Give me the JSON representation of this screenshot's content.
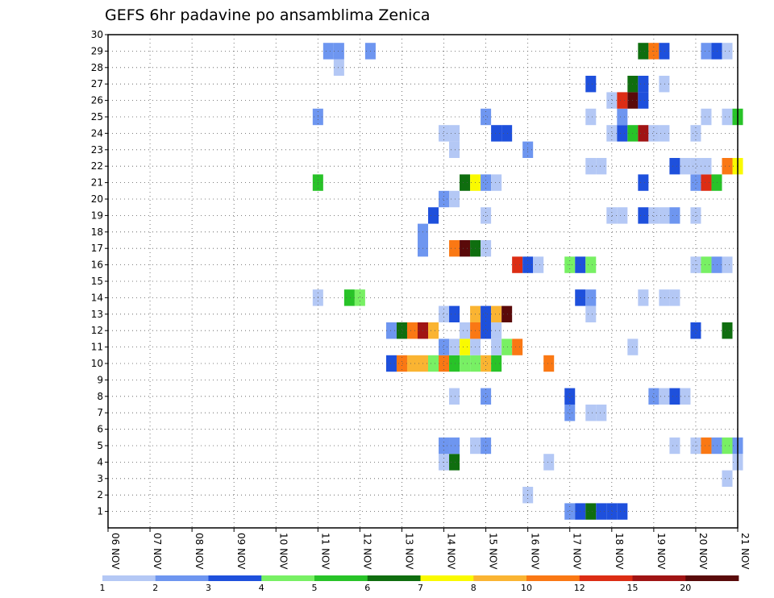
{
  "chart_data": {
    "type": "heatmap",
    "title": "GEFS 6hr padavine po ansamblima Zenica",
    "x_ticks": [
      "06 NOV",
      "07 NOV",
      "08 NOV",
      "09 NOV",
      "10 NOV",
      "11 NOV",
      "12 NOV",
      "13 NOV",
      "14 NOV",
      "15 NOV",
      "16 NOV",
      "17 NOV",
      "18 NOV",
      "19 NOV",
      "20 NOV",
      "21 NOV"
    ],
    "y_ticks": [
      "1",
      "2",
      "3",
      "4",
      "5",
      "6",
      "7",
      "8",
      "9",
      "10",
      "11",
      "12",
      "13",
      "14",
      "15",
      "16",
      "17",
      "18",
      "19",
      "20",
      "21",
      "22",
      "23",
      "24",
      "25",
      "26",
      "27",
      "28",
      "29",
      "30"
    ],
    "xlim": [
      0,
      15
    ],
    "ylim": [
      0,
      30
    ],
    "step_days": 0.25,
    "grid": true,
    "colorbar": {
      "labels": [
        "1",
        "2",
        "3",
        "4",
        "5",
        "6",
        "7",
        "8",
        "10",
        "12",
        "15",
        "20"
      ],
      "colors": [
        "#b4c8f5",
        "#6e96f0",
        "#1e50dc",
        "#78f064",
        "#28c328",
        "#0f6e0f",
        "#fafa00",
        "#fab432",
        "#fa7814",
        "#dc2d14",
        "#a01414",
        "#5a0a0a"
      ]
    },
    "cells": [
      {
        "y": 1,
        "x": [
          [
            11.0,
            2
          ],
          [
            11.25,
            3
          ],
          [
            11.5,
            6
          ],
          [
            11.75,
            3
          ],
          [
            12.0,
            3
          ],
          [
            12.25,
            3
          ]
        ]
      },
      {
        "y": 2,
        "x": [
          [
            10.0,
            1
          ]
        ]
      },
      {
        "y": 3,
        "x": [
          [
            14.75,
            1
          ]
        ]
      },
      {
        "y": 4,
        "x": [
          [
            8.0,
            1
          ],
          [
            8.25,
            6
          ],
          [
            10.5,
            1
          ],
          [
            15.0,
            1
          ]
        ]
      },
      {
        "y": 5,
        "x": [
          [
            8.0,
            2
          ],
          [
            8.25,
            2
          ],
          [
            8.75,
            1
          ],
          [
            9.0,
            2
          ],
          [
            13.5,
            1
          ],
          [
            14.0,
            1
          ],
          [
            14.25,
            9
          ],
          [
            14.5,
            2
          ],
          [
            14.75,
            4
          ],
          [
            15.0,
            2
          ]
        ]
      },
      {
        "y": 7,
        "x": [
          [
            11.0,
            2
          ],
          [
            11.5,
            1
          ],
          [
            11.75,
            1
          ]
        ]
      },
      {
        "y": 8,
        "x": [
          [
            8.25,
            1
          ],
          [
            9.0,
            2
          ],
          [
            11.0,
            3
          ],
          [
            13.0,
            2
          ],
          [
            13.25,
            1
          ],
          [
            13.5,
            3
          ],
          [
            13.75,
            1
          ]
        ]
      },
      {
        "y": 10,
        "x": [
          [
            6.75,
            3
          ],
          [
            7.0,
            9
          ],
          [
            7.25,
            8
          ],
          [
            7.5,
            8
          ],
          [
            7.75,
            4
          ],
          [
            8.0,
            9
          ],
          [
            8.25,
            5
          ],
          [
            8.5,
            4
          ],
          [
            8.75,
            4
          ],
          [
            9.0,
            8
          ],
          [
            9.25,
            5
          ],
          [
            10.5,
            9
          ]
        ]
      },
      {
        "y": 11,
        "x": [
          [
            8.0,
            2
          ],
          [
            8.25,
            1
          ],
          [
            8.5,
            7
          ],
          [
            8.75,
            1
          ],
          [
            9.25,
            1
          ],
          [
            9.5,
            4
          ],
          [
            9.75,
            9
          ],
          [
            12.5,
            1
          ]
        ]
      },
      {
        "y": 12,
        "x": [
          [
            6.75,
            2
          ],
          [
            7.0,
            6
          ],
          [
            7.25,
            9
          ],
          [
            7.5,
            11
          ],
          [
            7.75,
            8
          ],
          [
            8.5,
            1
          ],
          [
            8.75,
            9
          ],
          [
            9.0,
            3
          ],
          [
            9.25,
            1
          ],
          [
            14.0,
            3
          ],
          [
            14.75,
            6
          ]
        ]
      },
      {
        "y": 13,
        "x": [
          [
            8.0,
            1
          ],
          [
            8.25,
            3
          ],
          [
            8.75,
            8
          ],
          [
            9.0,
            3
          ],
          [
            9.25,
            8
          ],
          [
            9.5,
            12
          ],
          [
            11.5,
            1
          ]
        ]
      },
      {
        "y": 14,
        "x": [
          [
            5.0,
            1
          ],
          [
            5.75,
            5
          ],
          [
            6.0,
            4
          ],
          [
            11.25,
            3
          ],
          [
            11.5,
            2
          ],
          [
            12.75,
            1
          ],
          [
            13.25,
            1
          ],
          [
            13.5,
            1
          ]
        ]
      },
      {
        "y": 15,
        "x": []
      },
      {
        "y": 16,
        "x": [
          [
            9.75,
            10
          ],
          [
            10.0,
            3
          ],
          [
            10.25,
            1
          ],
          [
            11.0,
            4
          ],
          [
            11.25,
            3
          ],
          [
            11.5,
            4
          ],
          [
            14.0,
            1
          ],
          [
            14.25,
            4
          ],
          [
            14.5,
            2
          ],
          [
            14.75,
            1
          ]
        ]
      },
      {
        "y": 17,
        "x": [
          [
            7.5,
            2
          ],
          [
            8.25,
            9
          ],
          [
            8.5,
            12
          ],
          [
            8.75,
            6
          ],
          [
            9.0,
            1
          ]
        ]
      },
      {
        "y": 18,
        "x": [
          [
            7.5,
            2
          ]
        ]
      },
      {
        "y": 19,
        "x": [
          [
            7.75,
            3
          ],
          [
            9.0,
            1
          ],
          [
            12.0,
            1
          ],
          [
            12.25,
            1
          ],
          [
            12.75,
            3
          ],
          [
            13.0,
            1
          ],
          [
            13.25,
            1
          ],
          [
            13.5,
            2
          ],
          [
            14.0,
            1
          ]
        ]
      },
      {
        "y": 20,
        "x": [
          [
            8.0,
            2
          ],
          [
            8.25,
            1
          ]
        ]
      },
      {
        "y": 21,
        "x": [
          [
            5.0,
            5
          ],
          [
            8.5,
            6
          ],
          [
            8.75,
            7
          ],
          [
            9.0,
            2
          ],
          [
            9.25,
            1
          ],
          [
            12.75,
            3
          ],
          [
            14.0,
            2
          ],
          [
            14.25,
            10
          ],
          [
            14.5,
            5
          ]
        ]
      },
      {
        "y": 22,
        "x": [
          [
            11.5,
            1
          ],
          [
            11.75,
            1
          ],
          [
            13.5,
            3
          ],
          [
            13.75,
            1
          ],
          [
            14.0,
            1
          ],
          [
            14.25,
            1
          ],
          [
            14.75,
            9
          ],
          [
            15.0,
            7
          ]
        ]
      },
      {
        "y": 23,
        "x": [
          [
            8.25,
            1
          ],
          [
            10.0,
            2
          ]
        ]
      },
      {
        "y": 24,
        "x": [
          [
            8.0,
            1
          ],
          [
            8.25,
            1
          ],
          [
            9.25,
            3
          ],
          [
            9.5,
            3
          ],
          [
            12.0,
            1
          ],
          [
            12.25,
            3
          ],
          [
            12.5,
            5
          ],
          [
            12.75,
            11
          ],
          [
            13.0,
            1
          ],
          [
            13.25,
            1
          ],
          [
            14.0,
            1
          ]
        ]
      },
      {
        "y": 25,
        "x": [
          [
            5.0,
            2
          ],
          [
            9.0,
            2
          ],
          [
            11.5,
            1
          ],
          [
            12.25,
            2
          ],
          [
            14.25,
            1
          ],
          [
            14.75,
            1
          ],
          [
            15.0,
            5
          ]
        ]
      },
      {
        "y": 26,
        "x": [
          [
            12.0,
            1
          ],
          [
            12.25,
            10
          ],
          [
            12.5,
            12
          ],
          [
            12.75,
            3
          ]
        ]
      },
      {
        "y": 27,
        "x": [
          [
            11.5,
            3
          ],
          [
            12.5,
            6
          ],
          [
            12.75,
            3
          ],
          [
            13.25,
            1
          ]
        ]
      },
      {
        "y": 28,
        "x": [
          [
            5.5,
            1
          ]
        ]
      },
      {
        "y": 29,
        "x": [
          [
            5.25,
            2
          ],
          [
            5.5,
            2
          ],
          [
            6.25,
            2
          ],
          [
            12.75,
            6
          ],
          [
            13.0,
            9
          ],
          [
            13.25,
            3
          ],
          [
            14.25,
            2
          ],
          [
            14.5,
            3
          ],
          [
            14.75,
            1
          ]
        ]
      }
    ]
  }
}
